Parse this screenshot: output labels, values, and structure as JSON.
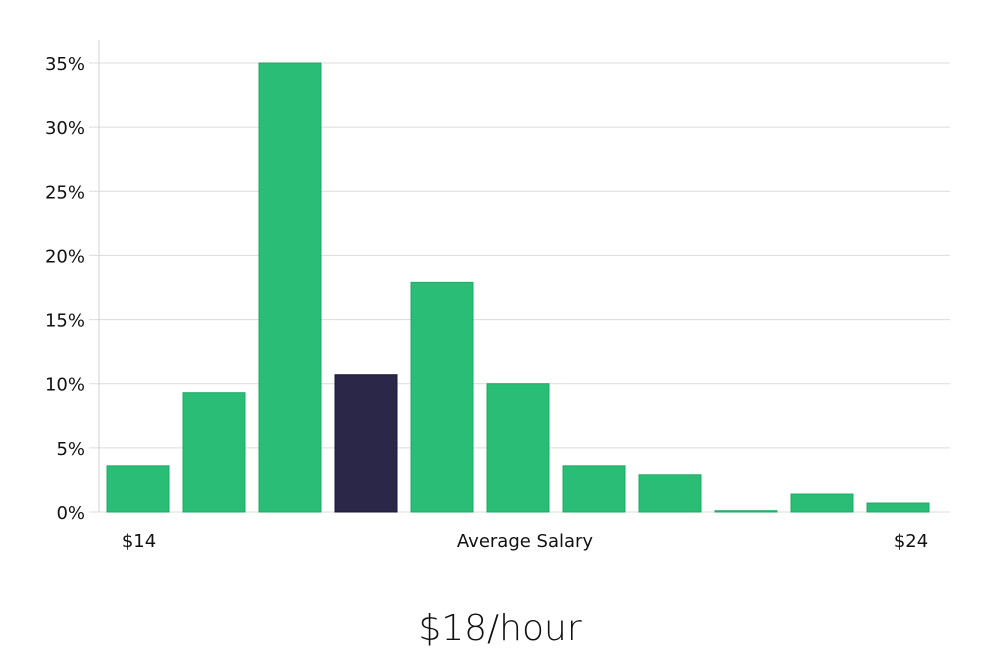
{
  "chart_data": {
    "type": "bar",
    "xlabel": "Average Salary",
    "x_end_labels": [
      "$14",
      "$24"
    ],
    "y_tick_labels": [
      "0%",
      "5%",
      "10%",
      "15%",
      "20%",
      "25%",
      "30%",
      "35%"
    ],
    "ylim": [
      0,
      35
    ],
    "grid": true,
    "values": [
      3.6,
      9.3,
      35.0,
      10.7,
      17.9,
      10.0,
      3.6,
      2.9,
      0.1,
      1.4,
      0.7
    ],
    "highlight_index": 3,
    "colors": {
      "bar": "#2abd75",
      "highlight": "#2a2748"
    }
  },
  "summary": {
    "salary": "$18/hour"
  }
}
